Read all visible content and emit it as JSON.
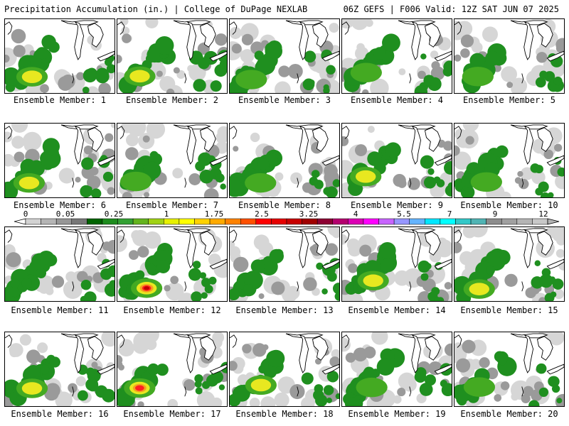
{
  "header": {
    "title_left": "Precipitation Accumulation (in.) | College of DuPage NEXLAB",
    "title_right": "06Z GEFS | F006 Valid: 12Z SAT JUN 07 2025"
  },
  "members": [
    {
      "label": "Ensemble Member: 1",
      "peak_level": 4
    },
    {
      "label": "Ensemble Member: 2",
      "peak_level": 4
    },
    {
      "label": "Ensemble Member: 3",
      "peak_level": 3
    },
    {
      "label": "Ensemble Member: 4",
      "peak_level": 3
    },
    {
      "label": "Ensemble Member: 5",
      "peak_level": 3
    },
    {
      "label": "Ensemble Member: 6",
      "peak_level": 4
    },
    {
      "label": "Ensemble Member: 7",
      "peak_level": 3
    },
    {
      "label": "Ensemble Member: 8",
      "peak_level": 3
    },
    {
      "label": "Ensemble Member: 9",
      "peak_level": 4
    },
    {
      "label": "Ensemble Member: 10",
      "peak_level": 3
    },
    {
      "label": "Ensemble Member: 11",
      "peak_level": 2
    },
    {
      "label": "Ensemble Member: 12",
      "peak_level": 7
    },
    {
      "label": "Ensemble Member: 13",
      "peak_level": 2
    },
    {
      "label": "Ensemble Member: 14",
      "peak_level": 4
    },
    {
      "label": "Ensemble Member: 15",
      "peak_level": 4
    },
    {
      "label": "Ensemble Member: 16",
      "peak_level": 4
    },
    {
      "label": "Ensemble Member: 17",
      "peak_level": 6
    },
    {
      "label": "Ensemble Member: 18",
      "peak_level": 4
    },
    {
      "label": "Ensemble Member: 19",
      "peak_level": 3
    },
    {
      "label": "Ensemble Member: 20",
      "peak_level": 3
    }
  ],
  "colorbar": {
    "labels": [
      "0",
      "0.05",
      "0.25",
      "1",
      "1.75",
      "2.5",
      "3.25",
      "4",
      "5.5",
      "7",
      "9",
      "12"
    ],
    "colors": [
      "#d2d2d2",
      "#b4b4b4",
      "#969696",
      "#787878",
      "#006400",
      "#1e8c1e",
      "#32a032",
      "#64b41e",
      "#a0d214",
      "#e6f000",
      "#ffff00",
      "#ffd200",
      "#ffaa00",
      "#ff8200",
      "#ff5000",
      "#ff0000",
      "#e60000",
      "#c80000",
      "#a00000",
      "#8c0032",
      "#b4006e",
      "#dc00b4",
      "#ff00ff",
      "#c864ff",
      "#9696ff",
      "#64b4ff",
      "#00e6ff",
      "#00ffff",
      "#32c8c8",
      "#50b4b4",
      "#8c8c8c",
      "#a0a0a0",
      "#b4b4b4",
      "#c8c8c8"
    ]
  }
}
